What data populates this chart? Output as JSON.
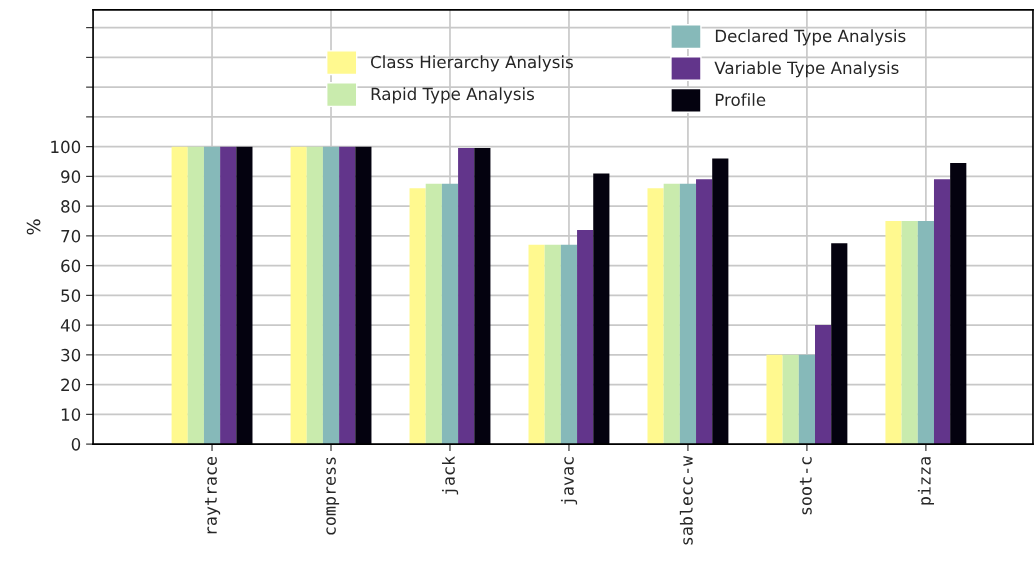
{
  "chart_data": {
    "type": "bar",
    "ylabel": "%",
    "categories": [
      "raytrace",
      "compress",
      "jack",
      "javac",
      "sablecc-w",
      "soot-c",
      "pizza"
    ],
    "series": [
      {
        "name": "Class Hierarchy Analysis",
        "color": "#fff98f",
        "values": [
          100,
          100,
          86,
          67,
          86,
          30,
          75
        ]
      },
      {
        "name": "Rapid Type Analysis",
        "color": "#c9ebad",
        "values": [
          100,
          100,
          87.5,
          67,
          87.5,
          30,
          75
        ]
      },
      {
        "name": "Declared Type Analysis",
        "color": "#86b9b9",
        "values": [
          100,
          100,
          87.5,
          67,
          87.5,
          30,
          75
        ]
      },
      {
        "name": "Variable Type Analysis",
        "color": "#62358b",
        "values": [
          100,
          100,
          99.5,
          72,
          89,
          40,
          89
        ]
      },
      {
        "name": "Profile",
        "color": "#04020f",
        "values": [
          100,
          100,
          99.5,
          91,
          96,
          67.5,
          94.5
        ]
      }
    ],
    "ylim": [
      0,
      146
    ],
    "yticks": [
      0,
      10,
      20,
      30,
      40,
      50,
      60,
      70,
      80,
      90,
      100,
      {
        "value": 110,
        "label": null
      },
      {
        "value": 120,
        "label": null
      },
      {
        "value": 130,
        "label": null
      },
      {
        "value": 140,
        "label": null
      }
    ],
    "grid": true,
    "legend": "top"
  }
}
